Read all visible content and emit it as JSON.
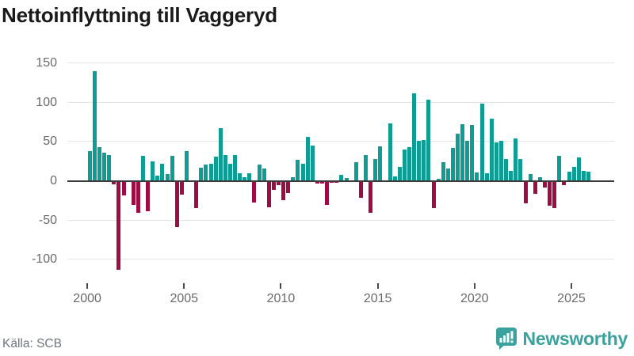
{
  "title": "Nettoinflyttning till Vaggeryd",
  "source_label": "Källa: SCB",
  "branding": {
    "name": "Newsworthy",
    "color": "#3aa29c",
    "icon": "bar-chart-speech-bubble"
  },
  "colors": {
    "positive_bar": "#0d9d95",
    "negative_bar": "#9e0c44",
    "zero_axis": "#3b3b3b",
    "gridline": "#e3e3e3",
    "axis_text": "#6a6a6a",
    "title_text": "#1a1a1a"
  },
  "chart_data": {
    "type": "bar",
    "title": "Nettoinflyttning till Vaggeryd",
    "xlabel": "",
    "ylabel": "",
    "frequency": "quarterly",
    "grid": true,
    "ylim": [
      -125,
      155
    ],
    "y_ticks": [
      150,
      100,
      50,
      0,
      -50,
      -100
    ],
    "x_tick_labels": [
      "2000",
      "2005",
      "2010",
      "2015",
      "2020",
      "2025"
    ],
    "quarters": [
      "2000Q1",
      "2000Q2",
      "2000Q3",
      "2000Q4",
      "2001Q1",
      "2001Q2",
      "2001Q3",
      "2001Q4",
      "2002Q1",
      "2002Q2",
      "2002Q3",
      "2002Q4",
      "2003Q1",
      "2003Q2",
      "2003Q3",
      "2003Q4",
      "2004Q1",
      "2004Q2",
      "2004Q3",
      "2004Q4",
      "2005Q1",
      "2005Q2",
      "2005Q3",
      "2005Q4",
      "2006Q1",
      "2006Q2",
      "2006Q3",
      "2006Q4",
      "2007Q1",
      "2007Q2",
      "2007Q3",
      "2007Q4",
      "2008Q1",
      "2008Q2",
      "2008Q3",
      "2008Q4",
      "2009Q1",
      "2009Q2",
      "2009Q3",
      "2009Q4",
      "2010Q1",
      "2010Q2",
      "2010Q3",
      "2010Q4",
      "2011Q1",
      "2011Q2",
      "2011Q3",
      "2011Q4",
      "2012Q1",
      "2012Q2",
      "2012Q3",
      "2012Q4",
      "2013Q1",
      "2013Q2",
      "2013Q3",
      "2013Q4",
      "2014Q1",
      "2014Q2",
      "2014Q3",
      "2014Q4",
      "2015Q1",
      "2015Q2",
      "2015Q3",
      "2015Q4",
      "2016Q1",
      "2016Q2",
      "2016Q3",
      "2016Q4",
      "2017Q1",
      "2017Q2",
      "2017Q3",
      "2017Q4",
      "2018Q1",
      "2018Q2",
      "2018Q3",
      "2018Q4",
      "2019Q1",
      "2019Q2",
      "2019Q3",
      "2019Q4",
      "2020Q1",
      "2020Q2",
      "2020Q3",
      "2020Q4",
      "2021Q1",
      "2021Q2",
      "2021Q3",
      "2021Q4",
      "2022Q1",
      "2022Q2",
      "2022Q3",
      "2022Q4",
      "2023Q1",
      "2023Q2",
      "2023Q3",
      "2023Q4",
      "2024Q1",
      "2024Q2",
      "2024Q3",
      "2024Q4",
      "2025Q1",
      "2025Q2",
      "2025Q3",
      "2025Q4"
    ],
    "values": [
      38,
      139,
      43,
      36,
      33,
      -5,
      -113,
      -19,
      0,
      -31,
      -41,
      32,
      -39,
      25,
      7,
      22,
      9,
      32,
      -59,
      -18,
      38,
      0,
      -35,
      17,
      21,
      22,
      31,
      67,
      33,
      22,
      33,
      10,
      5,
      10,
      -28,
      21,
      16,
      -34,
      -12,
      -6,
      -25,
      -16,
      5,
      27,
      22,
      56,
      45,
      -4,
      -4,
      -31,
      -3,
      -3,
      8,
      4,
      0,
      24,
      -22,
      33,
      -41,
      28,
      44,
      -2,
      73,
      6,
      18,
      40,
      43,
      111,
      51,
      52,
      103,
      -35,
      3,
      24,
      16,
      42,
      60,
      72,
      51,
      71,
      11,
      98,
      10,
      79,
      49,
      51,
      28,
      13,
      54,
      28,
      -29,
      9,
      -17,
      5,
      -9,
      -32,
      -35,
      32,
      -6,
      12,
      18,
      30,
      13,
      12
    ]
  }
}
